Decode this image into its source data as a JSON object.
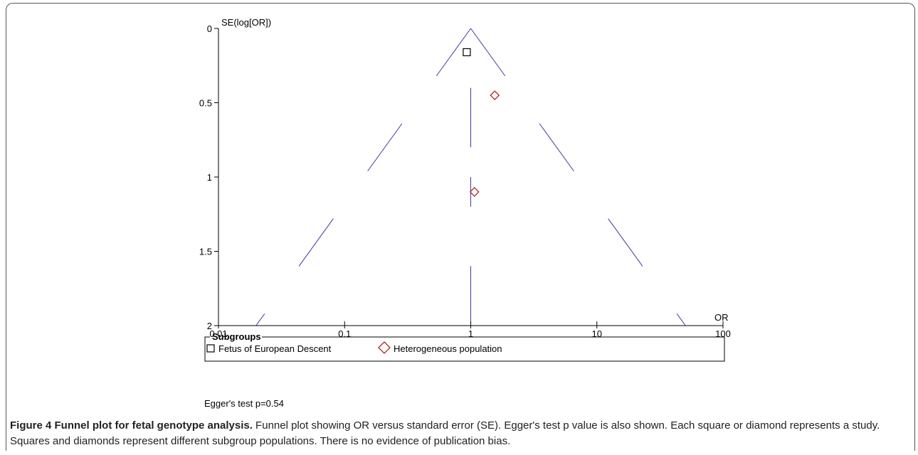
{
  "chart_data": {
    "type": "scatter",
    "title": "",
    "xlabel": "OR",
    "ylabel": "SE(log[OR])",
    "x_scale": "log",
    "xlim": [
      0.01,
      100
    ],
    "ylim": [
      0,
      2
    ],
    "y_inverted": true,
    "x_ticks": [
      "0.01",
      "0.1",
      "1",
      "10",
      "100"
    ],
    "y_ticks": [
      "0",
      "0.5",
      "1",
      "1.5",
      "2"
    ],
    "pooled_or": 1.0,
    "series": [
      {
        "name": "Fetus of European Descent",
        "marker": "square",
        "color": "#000000",
        "points": [
          {
            "x": 0.93,
            "y": 0.16
          }
        ]
      },
      {
        "name": "Heterogeneous population",
        "marker": "diamond",
        "color": "#b3261e",
        "points": [
          {
            "x": 1.55,
            "y": 0.45
          },
          {
            "x": 1.07,
            "y": 1.1
          }
        ]
      }
    ],
    "legend": {
      "title": "Subgroups",
      "placement": "bottom"
    },
    "annotation": "Egger's test p=0.54",
    "funnel_color": "#3b3b9e"
  },
  "caption": {
    "title": "Figure 4 Funnel plot for fetal genotype analysis.",
    "text": " Funnel plot showing OR versus standard error (SE). Egger's test p value is also shown. Each square or diamond represents a study. Squares and diamonds represent different subgroup populations. There is no evidence of publication bias."
  }
}
